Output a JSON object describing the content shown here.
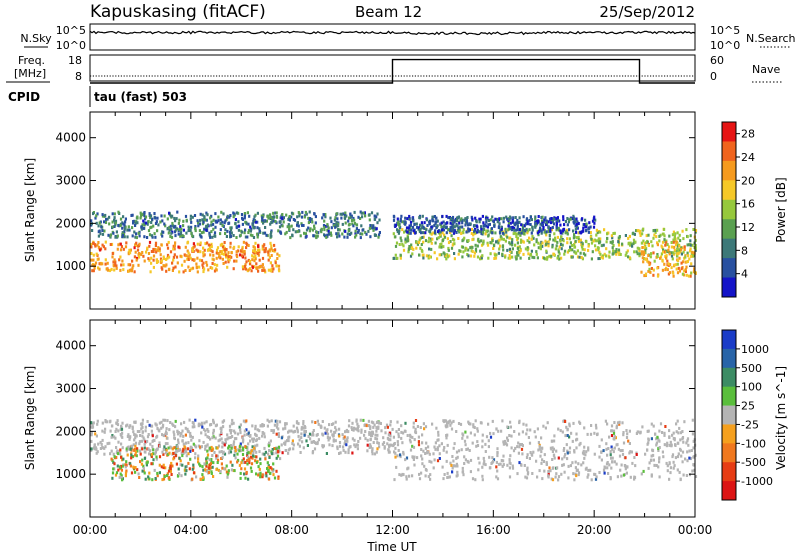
{
  "header": {
    "station": "Kapuskasing (fitACF)",
    "beam": "Beam 12",
    "date": "25/Sep/2012"
  },
  "noise_panel": {
    "left_label": "N.Sky",
    "left_ticks": [
      "10^5",
      "10^0"
    ],
    "right_label": "N.Search",
    "right_ticks": [
      "10^5",
      "10^0"
    ]
  },
  "freq_panel": {
    "left_label_1": "Freq.",
    "left_label_2": "[MHz]",
    "left_ticks": [
      "18",
      "8"
    ],
    "right_label": "Nave",
    "right_ticks": [
      "60",
      "0"
    ]
  },
  "cpid": {
    "label": "CPID",
    "value": "tau (fast) 503"
  },
  "colors": {
    "power": [
      "#1414c8",
      "#2850a0",
      "#3c7878",
      "#5aa050",
      "#96c83c",
      "#f5c828",
      "#f59a1e",
      "#f0641e",
      "#e61414"
    ],
    "velocity": [
      "#1a3cc8",
      "#2864a8",
      "#3c8c64",
      "#5abe3c",
      "#b4b4b4",
      "#f5a01e",
      "#f0781e",
      "#e63c14",
      "#dc1414"
    ]
  },
  "chart_data": [
    {
      "type": "heatmap",
      "name": "power",
      "ylabel": "Slant Range [km]",
      "xlabel": "",
      "x_range_hours": [
        0,
        24
      ],
      "ylim": [
        0,
        4600
      ],
      "y_ticks": [
        1000,
        2000,
        3000,
        4000
      ],
      "y_tick_labels": [
        "1000",
        "2000",
        "3000",
        "4000"
      ],
      "colorbar": {
        "label": "Power [dB]",
        "ticks": [
          "4",
          "8",
          "12",
          "16",
          "20",
          "24",
          "28"
        ],
        "range": [
          0,
          30
        ]
      },
      "features": [
        {
          "t0": 0.0,
          "t1": 7.5,
          "r0": 900,
          "r1": 1600,
          "level": 22
        },
        {
          "t0": 0.0,
          "t1": 11.5,
          "r0": 1700,
          "r1": 2300,
          "level": 8
        },
        {
          "t0": 12.0,
          "t1": 24.0,
          "r0": 1200,
          "r1": 1900,
          "level": 14
        },
        {
          "t0": 12.0,
          "t1": 20.0,
          "r0": 1800,
          "r1": 2200,
          "level": 6
        },
        {
          "t0": 21.8,
          "t1": 24.0,
          "r0": 800,
          "r1": 1600,
          "level": 20
        }
      ]
    },
    {
      "type": "heatmap",
      "name": "velocity",
      "ylabel": "Slant Range [km]",
      "xlabel": "Time UT",
      "x_range_hours": [
        0,
        24
      ],
      "x_ticks": [
        0,
        4,
        8,
        12,
        16,
        20,
        24
      ],
      "x_tick_labels": [
        "00:00",
        "04:00",
        "08:00",
        "12:00",
        "16:00",
        "20:00",
        "00:00"
      ],
      "ylim": [
        0,
        4600
      ],
      "y_ticks": [
        1000,
        2000,
        3000,
        4000
      ],
      "y_tick_labels": [
        "1000",
        "2000",
        "3000",
        "4000"
      ],
      "colorbar": {
        "label": "Velocity [m s^-1]",
        "ticks": [
          "1000",
          "500",
          "100",
          "25",
          "-25",
          "-100",
          "-500",
          "-1000"
        ],
        "range": [
          1000,
          -1000
        ]
      },
      "features": [
        {
          "t0": 0.0,
          "t1": 12.0,
          "r0": 1500,
          "r1": 2300,
          "level": 0
        },
        {
          "t0": 0.8,
          "t1": 7.5,
          "r0": 900,
          "r1": 1700,
          "level": 100
        },
        {
          "t0": 12.0,
          "t1": 24.0,
          "r0": 900,
          "r1": 2300,
          "level": 0
        }
      ]
    },
    {
      "type": "line",
      "name": "frequency",
      "ylabel": "Freq. [MHz]",
      "ylim": [
        8,
        18
      ],
      "x": [
        0,
        12,
        12,
        21.8,
        21.8,
        24
      ],
      "y": [
        8,
        8,
        17,
        17,
        8,
        8
      ]
    }
  ]
}
